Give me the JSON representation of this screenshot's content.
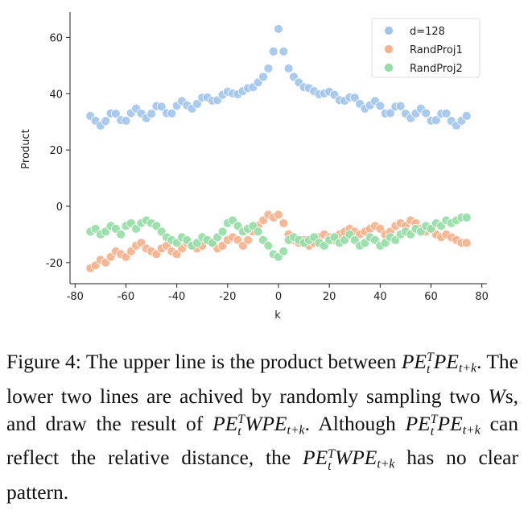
{
  "chart_data": {
    "type": "scatter",
    "xlabel": "k",
    "ylabel": "Product",
    "xlim": [
      -82,
      82
    ],
    "ylim": [
      -27.5,
      69
    ],
    "xticks": [
      -80,
      -60,
      -40,
      -20,
      0,
      20,
      40,
      60,
      80
    ],
    "yticks": [
      -20,
      0,
      20,
      40,
      60
    ],
    "legend": "upper right",
    "x": [
      -74,
      -72,
      -70,
      -68,
      -66,
      -64,
      -62,
      -60,
      -58,
      -56,
      -54,
      -52,
      -50,
      -48,
      -46,
      -44,
      -42,
      -40,
      -38,
      -36,
      -34,
      -32,
      -30,
      -28,
      -26,
      -24,
      -22,
      -20,
      -18,
      -16,
      -14,
      -12,
      -10,
      -8,
      -6,
      -4,
      -2,
      0,
      2,
      4,
      6,
      8,
      10,
      12,
      14,
      16,
      18,
      20,
      22,
      24,
      26,
      28,
      30,
      32,
      34,
      36,
      38,
      40,
      42,
      44,
      46,
      48,
      50,
      52,
      54,
      56,
      58,
      60,
      62,
      64,
      66,
      68,
      70,
      72,
      74
    ],
    "series": [
      {
        "name": "d=128",
        "color": "#a1c4ec",
        "values": [
          32.1,
          30.4,
          28.7,
          30.3,
          33.0,
          32.9,
          30.6,
          30.4,
          33.1,
          34.7,
          33.0,
          31.3,
          32.9,
          35.6,
          35.4,
          33.1,
          33.0,
          35.7,
          37.4,
          35.9,
          34.7,
          36.4,
          38.6,
          38.7,
          37.5,
          37.7,
          39.6,
          40.7,
          40.1,
          39.8,
          40.9,
          42.0,
          42.3,
          44,
          46,
          49,
          55,
          63,
          55,
          49,
          46,
          44,
          42.3,
          42.0,
          40.9,
          39.8,
          40.1,
          40.7,
          39.6,
          37.7,
          37.5,
          38.7,
          38.6,
          36.4,
          34.7,
          35.9,
          37.4,
          35.7,
          33.0,
          33.1,
          35.4,
          35.6,
          32.9,
          31.3,
          33.0,
          34.7,
          33.1,
          30.4,
          30.6,
          32.9,
          33.0,
          30.3,
          28.7,
          30.4,
          32.1
        ]
      },
      {
        "name": "RandProj1",
        "color": "#f7b08a",
        "values": [
          -22,
          -21,
          -19,
          -20,
          -18,
          -16,
          -17,
          -18,
          -16,
          -14,
          -13,
          -15,
          -16,
          -17,
          -15,
          -14,
          -16,
          -17,
          -15,
          -13,
          -14,
          -15,
          -14,
          -12,
          -13,
          -15,
          -14,
          -12,
          -11,
          -12,
          -14,
          -12,
          -9,
          -7,
          -5,
          -3,
          -4,
          -3,
          -6,
          -10,
          -12,
          -13,
          -12,
          -14,
          -13,
          -11,
          -10,
          -11,
          -12,
          -10,
          -9,
          -8,
          -9,
          -10,
          -9,
          -8,
          -7,
          -8,
          -10,
          -9,
          -7,
          -6,
          -7,
          -5,
          -6,
          -8,
          -9,
          -8,
          -10,
          -11,
          -10,
          -11,
          -12,
          -13,
          -13
        ]
      },
      {
        "name": "RandProj2",
        "color": "#94dea6",
        "values": [
          -9,
          -8,
          -10,
          -9,
          -7,
          -8,
          -10,
          -7,
          -6,
          -8,
          -6,
          -5,
          -6,
          -7,
          -9,
          -11,
          -12,
          -13,
          -11,
          -12,
          -14,
          -13,
          -11,
          -12,
          -13,
          -11,
          -9,
          -6,
          -5,
          -7,
          -9,
          -8,
          -7,
          -9,
          -12,
          -14,
          -17,
          -18,
          -16,
          -12,
          -11,
          -12,
          -13,
          -12,
          -11,
          -13,
          -14,
          -12,
          -11,
          -13,
          -12,
          -10,
          -12,
          -14,
          -13,
          -11,
          -12,
          -14,
          -13,
          -11,
          -12,
          -10,
          -9,
          -10,
          -8,
          -9,
          -7,
          -8,
          -6,
          -7,
          -5,
          -6,
          -5,
          -4,
          -4
        ]
      }
    ]
  },
  "caption": [
    {
      "text": "Figure 4:  The upper line is the product between "
    },
    {
      "math": [
        {
          "base": "PE",
          "sub": "t",
          "sup": "T"
        },
        {
          "base": "PE",
          "sub": "t+k"
        }
      ]
    },
    {
      "text": ".  The lower two lines are achived by randomly sampling two "
    },
    {
      "math": [
        {
          "base": "W"
        }
      ]
    },
    {
      "text": "s, and draw the result of "
    },
    {
      "math": [
        {
          "base": "PE",
          "sub": "t",
          "sup": "T"
        },
        {
          "base": "WPE",
          "sub": "t+k"
        }
      ]
    },
    {
      "text": ". Although "
    },
    {
      "math": [
        {
          "base": "PE",
          "sub": "t",
          "sup": "T"
        },
        {
          "base": "PE",
          "sub": "t+k"
        }
      ]
    },
    {
      "text": " can reflect the relative distance, the "
    },
    {
      "math": [
        {
          "base": "PE",
          "sub": "t",
          "sup": "T"
        },
        {
          "base": "WPE",
          "sub": "t+k"
        }
      ]
    },
    {
      "text": " has no clear pattern."
    }
  ]
}
